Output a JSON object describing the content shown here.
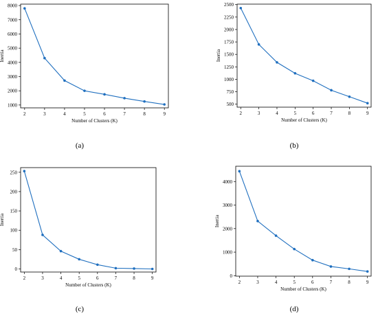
{
  "chart_data": [
    {
      "type": "line",
      "panel_label": "(a)",
      "xlabel": "Number of Clusters (K)",
      "ylabel": "Inertia",
      "x": [
        2,
        3,
        4,
        5,
        6,
        7,
        8,
        9
      ],
      "values": [
        7800,
        4300,
        2720,
        2000,
        1750,
        1480,
        1250,
        1040
      ],
      "xlim": [
        1.8,
        9.2
      ],
      "ylim": [
        800,
        8100
      ],
      "xticks": [
        2,
        3,
        4,
        5,
        6,
        7,
        8,
        9
      ],
      "yticks": [
        1000,
        2000,
        3000,
        4000,
        5000,
        6000,
        7000,
        8000
      ],
      "grid": false,
      "color": "#1f6fbf"
    },
    {
      "type": "line",
      "panel_label": "(b)",
      "xlabel": "Number of Clusters (K)",
      "ylabel": "Inertia",
      "x": [
        2,
        3,
        4,
        5,
        6,
        7,
        8,
        9
      ],
      "values": [
        2430,
        1700,
        1340,
        1120,
        970,
        780,
        650,
        520
      ],
      "xlim": [
        1.8,
        9.2
      ],
      "ylim": [
        440,
        2510
      ],
      "xticks": [
        2,
        3,
        4,
        5,
        6,
        7,
        8,
        9
      ],
      "yticks": [
        500,
        750,
        1000,
        1250,
        1500,
        1750,
        2000,
        2250,
        2500
      ],
      "grid": false,
      "color": "#1f6fbf"
    },
    {
      "type": "line",
      "panel_label": "(c)",
      "xlabel": "Number of Clusters (K)",
      "ylabel": "Inertia",
      "x": [
        2,
        3,
        4,
        5,
        6,
        7,
        8,
        9
      ],
      "values": [
        253,
        88,
        46,
        25,
        11,
        2,
        1,
        0
      ],
      "xlim": [
        1.8,
        9.2
      ],
      "ylim": [
        -8,
        262
      ],
      "xticks": [
        2,
        3,
        4,
        5,
        6,
        7,
        8,
        9
      ],
      "yticks": [
        0,
        50,
        100,
        150,
        200,
        250
      ],
      "grid": false,
      "color": "#1f6fbf"
    },
    {
      "type": "line",
      "panel_label": "(d)",
      "xlabel": "Number of Clusters (K)",
      "ylabel": "Inertia",
      "x": [
        2,
        3,
        4,
        5,
        6,
        7,
        8,
        9
      ],
      "values": [
        4440,
        2320,
        1700,
        1130,
        660,
        390,
        290,
        180
      ],
      "xlim": [
        1.8,
        9.2
      ],
      "ylim": [
        -20,
        4650
      ],
      "xticks": [
        2,
        3,
        4,
        5,
        6,
        7,
        8,
        9
      ],
      "yticks": [
        0,
        1000,
        2000,
        3000,
        4000
      ],
      "grid": false,
      "color": "#1f6fbf"
    }
  ]
}
